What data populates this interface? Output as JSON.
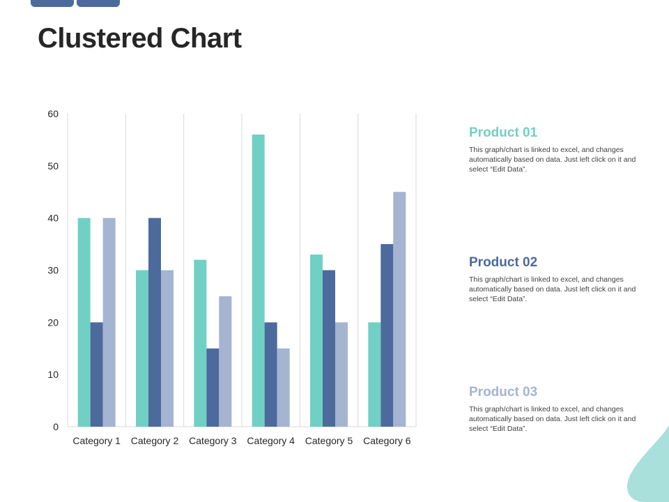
{
  "page": {
    "title": "Clustered Chart"
  },
  "colors": {
    "accent_teal": "#71d0c4",
    "accent_navy": "#4c6a9c",
    "accent_light": "#a4b4d1",
    "text_dark": "#262626"
  },
  "chart_data": {
    "type": "bar",
    "title": "",
    "xlabel": "",
    "ylabel": "",
    "categories": [
      "Category 1",
      "Category 2",
      "Category 3",
      "Category 4",
      "Category 5",
      "Category 6"
    ],
    "series": [
      {
        "name": "Product 01",
        "values": [
          40,
          30,
          32,
          56,
          33,
          20
        ],
        "color": "#71d0c4"
      },
      {
        "name": "Product 02",
        "values": [
          20,
          40,
          15,
          20,
          30,
          35
        ],
        "color": "#4c6a9c"
      },
      {
        "name": "Product 03",
        "values": [
          40,
          30,
          25,
          15,
          20,
          45
        ],
        "color": "#a4b4d1"
      }
    ],
    "ylim": [
      0,
      60
    ],
    "yticks": [
      0,
      10,
      20,
      30,
      40,
      50,
      60
    ],
    "grid": "vertical category separators",
    "legend": "right"
  },
  "legend": [
    {
      "name": "Product 01",
      "color": "#71d0c4",
      "text": "This graph/chart is linked to excel, and changes automatically based on data. Just left click on it and select “Edit Data”."
    },
    {
      "name": "Product 02",
      "color": "#4c6a9c",
      "text": "This graph/chart is linked to excel, and changes automatically based on data. Just left click on it and select “Edit Data”."
    },
    {
      "name": "Product 03",
      "color": "#a4b4d1",
      "text": "This graph/chart is linked to excel, and changes automatically based on data. Just left click on it and select “Edit Data”."
    }
  ]
}
